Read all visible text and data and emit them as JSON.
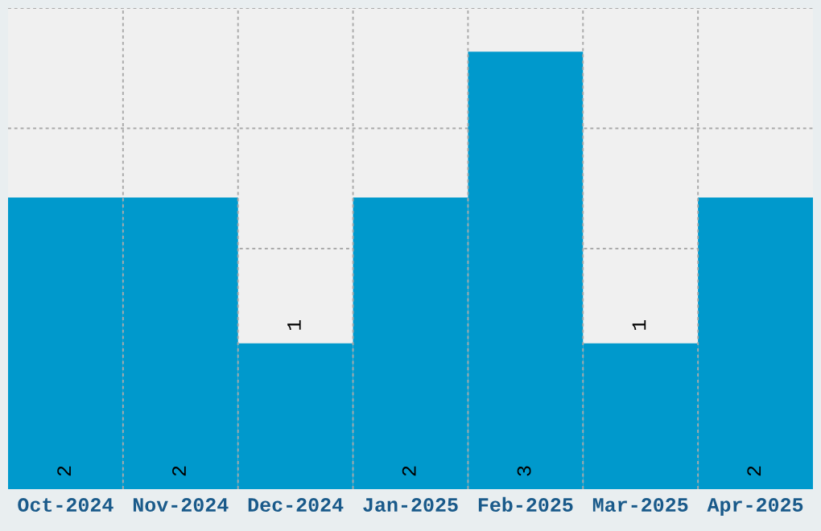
{
  "chart_data": {
    "type": "bar",
    "categories": [
      "Oct-2024",
      "Nov-2024",
      "Dec-2024",
      "Jan-2025",
      "Feb-2025",
      "Mar-2025",
      "Apr-2025"
    ],
    "values": [
      2,
      2,
      1,
      2,
      3,
      1,
      2
    ],
    "color": "#0099cc",
    "data_labels": true,
    "ylim": [
      0,
      3.3
    ],
    "tick_labels": "x",
    "grid": true
  }
}
